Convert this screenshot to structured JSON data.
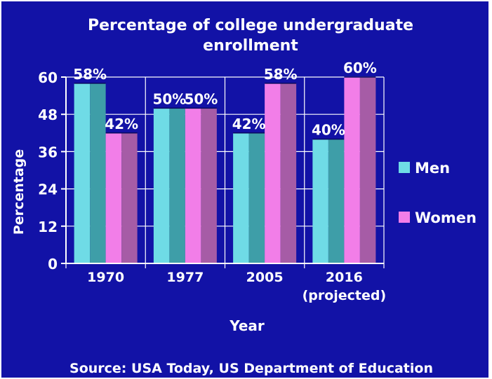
{
  "chart_data": {
    "type": "bar",
    "title": "Percentage of college undergraduate enrollment",
    "title_lines": [
      "Percentage of college undergraduate",
      "enrollment"
    ],
    "xlabel": "Year",
    "ylabel": "Percentage",
    "ylim": [
      0,
      60
    ],
    "yticks": [
      0,
      12,
      24,
      36,
      48,
      60
    ],
    "grid": true,
    "legend_position": "right",
    "categories": [
      {
        "label": [
          "1970"
        ],
        "full": "1970"
      },
      {
        "label": [
          "1977"
        ],
        "full": "1977"
      },
      {
        "label": [
          "2005"
        ],
        "full": "2005"
      },
      {
        "label": [
          "2016",
          "(projected)"
        ],
        "full": "2016 (projected)"
      }
    ],
    "series": [
      {
        "name": "Men",
        "values": [
          58,
          50,
          42,
          40
        ],
        "data_labels": [
          "58%",
          "50%",
          "42%",
          "40%"
        ],
        "color_light": "#6fdbe6",
        "color_dark": "#3e9ea8"
      },
      {
        "name": "Women",
        "values": [
          42,
          50,
          58,
          60
        ],
        "data_labels": [
          "42%",
          "50%",
          "58%",
          "60%"
        ],
        "color_light": "#f27ee8",
        "color_dark": "#a65ca6"
      }
    ],
    "source": "Source:  USA Today, US Department of Education"
  },
  "colors": {
    "background": "#1212a6",
    "text": "#ffffff",
    "frame": "#ffffff"
  }
}
